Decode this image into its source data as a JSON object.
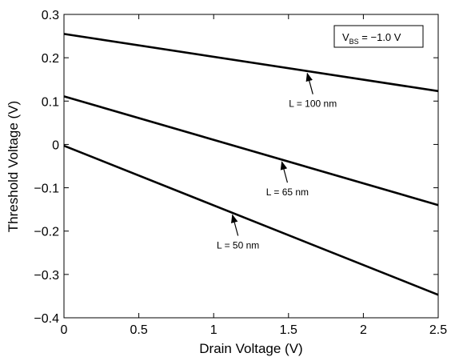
{
  "chart_data": {
    "type": "line",
    "title": "",
    "xlabel": "Drain Voltage (V)",
    "ylabel": "Threshold Voltage (V)",
    "xlim": [
      0,
      2.5
    ],
    "ylim": [
      -0.4,
      0.3
    ],
    "xticks": [
      0,
      0.5,
      1,
      1.5,
      2,
      2.5
    ],
    "xtick_labels": [
      "0",
      "0.5",
      "1",
      "1.5",
      "2",
      "2.5"
    ],
    "yticks": [
      -0.4,
      -0.3,
      -0.2,
      -0.1,
      0,
      0.1,
      0.2,
      0.3
    ],
    "ytick_labels": [
      "−0.4",
      "−0.3",
      "−0.2",
      "−0.1",
      "0",
      "0.1",
      "0.2",
      "0.3"
    ],
    "grid": false,
    "legend": {
      "position": "top-right",
      "main": "V",
      "subscript": "BS",
      "rest": " = −1.0 V"
    },
    "series": [
      {
        "x": [
          0,
          2.5
        ],
        "y": [
          0.255,
          0.123
        ],
        "annotation": {
          "text": "L = 100 nm",
          "arrow_x": 1.62
        }
      },
      {
        "x": [
          0,
          2.5
        ],
        "y": [
          0.111,
          -0.14
        ],
        "annotation": {
          "text": "L = 65 nm",
          "arrow_x": 1.45
        }
      },
      {
        "x": [
          0,
          2.5
        ],
        "y": [
          -0.003,
          -0.347
        ],
        "annotation": {
          "text": "L = 50 nm",
          "arrow_x": 1.12
        }
      }
    ]
  },
  "colors": {
    "line": "#000000",
    "background": "#ffffff"
  }
}
